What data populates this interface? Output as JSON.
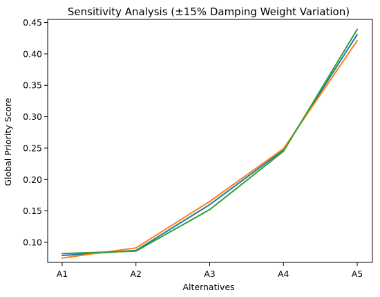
{
  "chart_data": {
    "type": "line",
    "title": "Sensitivity Analysis (±15% Damping Weight Variation)",
    "xlabel": "Alternatives",
    "ylabel": "Global Priority Score",
    "categories": [
      "A1",
      "A2",
      "A3",
      "A4",
      "A5"
    ],
    "yticks": [
      "0.10",
      "0.15",
      "0.20",
      "0.25",
      "0.30",
      "0.35",
      "0.40",
      "0.45"
    ],
    "ylim": [
      0.068,
      0.455
    ],
    "grid": false,
    "series": [
      {
        "color": "#1f77b4",
        "values": [
          0.079,
          0.087,
          0.16,
          0.247,
          0.431
        ]
      },
      {
        "color": "#ff7f0e",
        "values": [
          0.075,
          0.091,
          0.165,
          0.249,
          0.421
        ]
      },
      {
        "color": "#2ca02c",
        "values": [
          0.082,
          0.086,
          0.152,
          0.245,
          0.439
        ]
      }
    ]
  }
}
